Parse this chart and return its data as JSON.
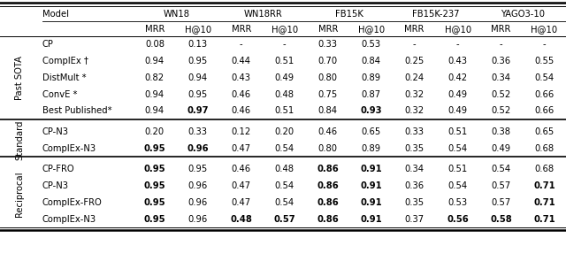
{
  "sections": [
    {
      "label": "Past SOTA",
      "rows": [
        {
          "model": "CP",
          "vals": [
            "0.08",
            "0.13",
            "-",
            "-",
            "0.33",
            "0.53",
            "-",
            "-",
            "-",
            "-"
          ],
          "bold": []
        },
        {
          "model": "ComplEx †",
          "vals": [
            "0.94",
            "0.95",
            "0.44",
            "0.51",
            "0.70",
            "0.84",
            "0.25",
            "0.43",
            "0.36",
            "0.55"
          ],
          "bold": []
        },
        {
          "model": "DistMult *",
          "vals": [
            "0.82",
            "0.94",
            "0.43",
            "0.49",
            "0.80",
            "0.89",
            "0.24",
            "0.42",
            "0.34",
            "0.54"
          ],
          "bold": []
        },
        {
          "model": "ConvE *",
          "vals": [
            "0.94",
            "0.95",
            "0.46",
            "0.48",
            "0.75",
            "0.87",
            "0.32",
            "0.49",
            "0.52",
            "0.66"
          ],
          "bold": []
        },
        {
          "model": "Best Published*",
          "vals": [
            "0.94",
            "0.97",
            "0.46",
            "0.51",
            "0.84",
            "0.93",
            "0.32",
            "0.49",
            "0.52",
            "0.66"
          ],
          "bold": [
            1,
            5
          ]
        }
      ]
    },
    {
      "label": "Standard",
      "rows": [
        {
          "model": "CP-N3",
          "vals": [
            "0.20",
            "0.33",
            "0.12",
            "0.20",
            "0.46",
            "0.65",
            "0.33",
            "0.51",
            "0.38",
            "0.65"
          ],
          "bold": []
        },
        {
          "model": "ComplEx-N3",
          "vals": [
            "0.95",
            "0.96",
            "0.47",
            "0.54",
            "0.80",
            "0.89",
            "0.35",
            "0.54",
            "0.49",
            "0.68"
          ],
          "bold": [
            0,
            1
          ]
        }
      ]
    },
    {
      "label": "Reciprocal",
      "rows": [
        {
          "model": "CP-FRO",
          "vals": [
            "0.95",
            "0.95",
            "0.46",
            "0.48",
            "0.86",
            "0.91",
            "0.34",
            "0.51",
            "0.54",
            "0.68"
          ],
          "bold": [
            0,
            4,
            5
          ]
        },
        {
          "model": "CP-N3",
          "vals": [
            "0.95",
            "0.96",
            "0.47",
            "0.54",
            "0.86",
            "0.91",
            "0.36",
            "0.54",
            "0.57",
            "0.71"
          ],
          "bold": [
            0,
            4,
            5,
            9
          ]
        },
        {
          "model": "ComplEx-FRO",
          "vals": [
            "0.95",
            "0.96",
            "0.47",
            "0.54",
            "0.86",
            "0.91",
            "0.35",
            "0.53",
            "0.57",
            "0.71"
          ],
          "bold": [
            0,
            4,
            5,
            9
          ]
        },
        {
          "model": "ComplEx-N3",
          "vals": [
            "0.95",
            "0.96",
            "0.48",
            "0.57",
            "0.86",
            "0.91",
            "0.37",
            "0.56",
            "0.58",
            "0.71"
          ],
          "bold": [
            0,
            2,
            3,
            4,
            5,
            7,
            8,
            9
          ]
        }
      ]
    }
  ],
  "datasets": [
    "WN18",
    "WN18RR",
    "FB15K",
    "FB15K-237",
    "YAGO3-10"
  ],
  "sub_headers": [
    "MRR",
    "H@10",
    "MRR",
    "H@10",
    "MRR",
    "H@10",
    "MRR",
    "H@10",
    "MRR",
    "H@10"
  ],
  "bg_color": "#ffffff",
  "text_color": "#000000",
  "font_size": 7.2,
  "section_label_fontsize": 7.2
}
